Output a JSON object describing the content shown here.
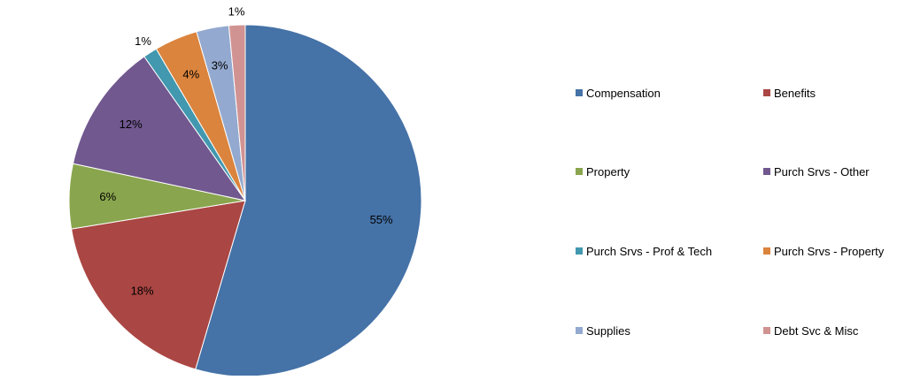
{
  "chart_data": {
    "type": "pie",
    "title": "",
    "slices": [
      {
        "label": "Compensation",
        "value": 55,
        "data_label": "55%",
        "color": "#4572A7"
      },
      {
        "label": "Benefits",
        "value": 18,
        "data_label": "18%",
        "color": "#AA4643"
      },
      {
        "label": "Property",
        "value": 6,
        "data_label": "6%",
        "color": "#89A54E"
      },
      {
        "label": "Purch Srvs - Other",
        "value": 12,
        "data_label": "12%",
        "color": "#71588F"
      },
      {
        "label": "Purch Srvs - Prof & Tech",
        "value": 1.3,
        "data_label": "1%",
        "color": "#4198AF"
      },
      {
        "label": "Purch Srvs - Property",
        "value": 4,
        "data_label": "4%",
        "color": "#DB843D"
      },
      {
        "label": "Supplies",
        "value": 3,
        "data_label": "3%",
        "color": "#93A9CF"
      },
      {
        "label": "Debt Svc & Misc",
        "value": 1.5,
        "data_label": "1%",
        "color": "#D19392"
      }
    ],
    "legend": {
      "position": "right",
      "columns": 2,
      "order": [
        "Compensation",
        "Benefits",
        "Property",
        "Purch Srvs - Other",
        "Purch Srvs - Prof & Tech",
        "Purch Srvs - Property",
        "Supplies",
        "Debt Svc & Misc"
      ]
    }
  }
}
